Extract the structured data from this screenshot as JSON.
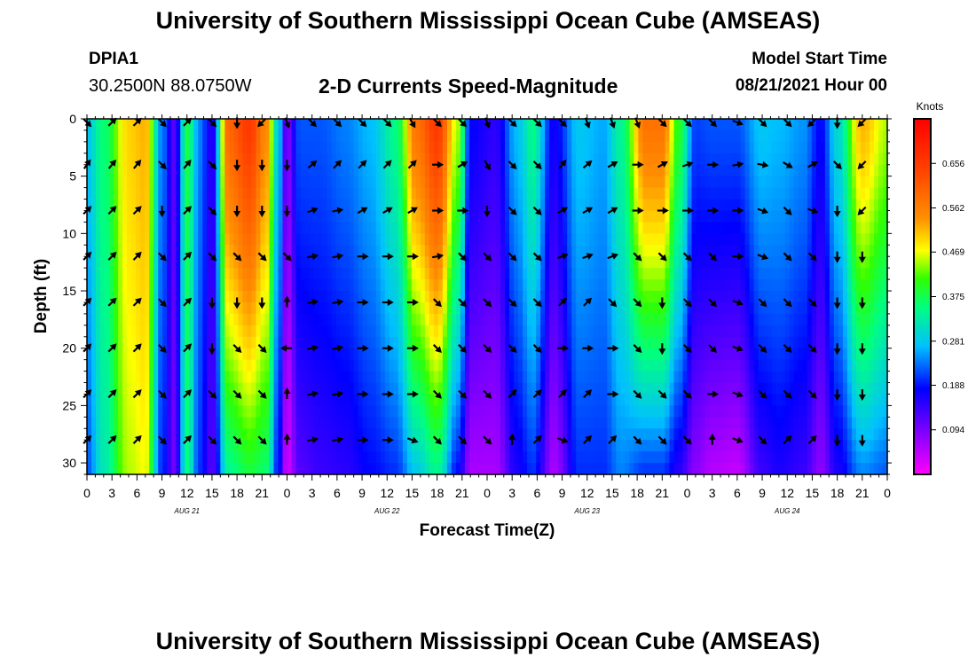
{
  "header": {
    "title": "University of Southern Mississippi Ocean Cube (AMSEAS)",
    "station_id": "DPIA1",
    "station_coords": "30.2500N  88.0750W",
    "subtitle": "2-D Currents Speed-Magnitude",
    "model_label": "Model Start Time",
    "model_date": "08/21/2021 Hour 00"
  },
  "footer": {
    "title": "University of Southern Mississippi Ocean Cube (AMSEAS)"
  },
  "colorbar": {
    "unit": "Knots",
    "ticks": [
      "0.656",
      "0.562",
      "0.469",
      "0.375",
      "0.281",
      "0.188",
      "0.094"
    ]
  },
  "chart_data": {
    "type": "heatmap",
    "title": "2-D Currents Speed-Magnitude",
    "xlabel": "Forecast Time(Z)",
    "ylabel": "Depth (ft)",
    "x_ticks": [
      "0",
      "3",
      "6",
      "9",
      "12",
      "15",
      "18",
      "21",
      "0",
      "3",
      "6",
      "9",
      "12",
      "15",
      "18",
      "21",
      "0",
      "3",
      "6",
      "9",
      "12",
      "15",
      "18",
      "21",
      "0",
      "3",
      "6",
      "9",
      "12",
      "15",
      "18",
      "21",
      "0"
    ],
    "x_range_hours": [
      0,
      96
    ],
    "day_labels": [
      {
        "hour": 12,
        "label": "AUG 21"
      },
      {
        "hour": 36,
        "label": "AUG 22"
      },
      {
        "hour": 60,
        "label": "AUG 23"
      },
      {
        "hour": 84,
        "label": "AUG 24"
      }
    ],
    "y_ticks": [
      "0",
      "5",
      "10",
      "15",
      "20",
      "25",
      "30"
    ],
    "ylim": [
      31,
      0
    ],
    "colorscale_knots": [
      0.0,
      0.75
    ],
    "speed_profile": [
      {
        "hour": 0,
        "top": 0.28,
        "bottom": 0.22
      },
      {
        "hour": 2,
        "top": 0.36,
        "bottom": 0.32
      },
      {
        "hour": 5,
        "top": 0.5,
        "bottom": 0.45
      },
      {
        "hour": 7,
        "top": 0.52,
        "bottom": 0.47
      },
      {
        "hour": 9,
        "top": 0.24,
        "bottom": 0.2
      },
      {
        "hour": 10.5,
        "top": 0.12,
        "bottom": 0.1
      },
      {
        "hour": 12,
        "top": 0.38,
        "bottom": 0.35
      },
      {
        "hour": 13.5,
        "top": 0.24,
        "bottom": 0.2
      },
      {
        "hour": 15,
        "top": 0.15,
        "bottom": 0.12
      },
      {
        "hour": 17,
        "top": 0.6,
        "bottom": 0.34
      },
      {
        "hour": 19.5,
        "top": 0.66,
        "bottom": 0.38
      },
      {
        "hour": 21.5,
        "top": 0.55,
        "bottom": 0.36
      },
      {
        "hour": 23,
        "top": 0.28,
        "bottom": 0.18
      },
      {
        "hour": 24,
        "top": 0.09,
        "bottom": 0.03
      },
      {
        "hour": 25.5,
        "top": 0.22,
        "bottom": 0.12
      },
      {
        "hour": 28,
        "top": 0.22,
        "bottom": 0.14
      },
      {
        "hour": 31,
        "top": 0.24,
        "bottom": 0.15
      },
      {
        "hour": 34,
        "top": 0.27,
        "bottom": 0.18
      },
      {
        "hour": 37,
        "top": 0.35,
        "bottom": 0.2
      },
      {
        "hour": 39.5,
        "top": 0.58,
        "bottom": 0.28
      },
      {
        "hour": 42,
        "top": 0.66,
        "bottom": 0.34
      },
      {
        "hour": 44.5,
        "top": 0.45,
        "bottom": 0.18
      },
      {
        "hour": 46,
        "top": 0.18,
        "bottom": 0.06
      },
      {
        "hour": 49,
        "top": 0.15,
        "bottom": 0.06
      },
      {
        "hour": 51.5,
        "top": 0.27,
        "bottom": 0.16
      },
      {
        "hour": 53.5,
        "top": 0.35,
        "bottom": 0.2
      },
      {
        "hour": 56,
        "top": 0.17,
        "bottom": 0.06
      },
      {
        "hour": 59,
        "top": 0.28,
        "bottom": 0.2
      },
      {
        "hour": 62,
        "top": 0.26,
        "bottom": 0.2
      },
      {
        "hour": 64,
        "top": 0.34,
        "bottom": 0.24
      },
      {
        "hour": 67,
        "top": 0.58,
        "bottom": 0.2
      },
      {
        "hour": 69,
        "top": 0.58,
        "bottom": 0.2
      },
      {
        "hour": 71,
        "top": 0.4,
        "bottom": 0.15
      },
      {
        "hour": 73,
        "top": 0.21,
        "bottom": 0.08
      },
      {
        "hour": 75,
        "top": 0.22,
        "bottom": 0.05
      },
      {
        "hour": 78,
        "top": 0.22,
        "bottom": 0.04
      },
      {
        "hour": 81,
        "top": 0.28,
        "bottom": 0.14
      },
      {
        "hour": 83,
        "top": 0.27,
        "bottom": 0.16
      },
      {
        "hour": 86,
        "top": 0.25,
        "bottom": 0.14
      },
      {
        "hour": 88,
        "top": 0.18,
        "bottom": 0.08
      },
      {
        "hour": 90,
        "top": 0.3,
        "bottom": 0.16
      },
      {
        "hour": 93,
        "top": 0.52,
        "bottom": 0.24
      },
      {
        "hour": 96,
        "top": 0.45,
        "bottom": 0.22
      }
    ],
    "vector_rows_ft": [
      0,
      4,
      8,
      12,
      16,
      20,
      24,
      28
    ],
    "vector_directions_deg": [
      [
        135,
        45,
        45,
        135,
        45,
        135,
        180,
        225,
        160,
        135,
        135,
        135,
        135,
        150,
        135,
        135,
        160,
        135,
        135,
        135,
        160,
        160,
        160,
        135,
        135,
        135,
        110,
        135,
        135,
        225,
        180,
        225
      ],
      [
        35,
        40,
        40,
        135,
        40,
        135,
        180,
        180,
        180,
        50,
        45,
        45,
        45,
        45,
        90,
        60,
        150,
        135,
        135,
        40,
        50,
        60,
        90,
        60,
        70,
        90,
        80,
        100,
        120,
        60,
        135,
        225
      ],
      [
        45,
        45,
        45,
        180,
        45,
        135,
        180,
        180,
        180,
        70,
        80,
        60,
        60,
        60,
        90,
        90,
        180,
        135,
        135,
        60,
        60,
        60,
        90,
        90,
        90,
        90,
        90,
        110,
        135,
        110,
        180,
        225
      ],
      [
        45,
        45,
        45,
        135,
        45,
        135,
        135,
        135,
        135,
        80,
        80,
        90,
        90,
        90,
        80,
        135,
        135,
        135,
        135,
        70,
        70,
        70,
        135,
        135,
        135,
        135,
        90,
        110,
        135,
        135,
        180,
        180
      ],
      [
        45,
        45,
        45,
        135,
        45,
        180,
        180,
        180,
        0,
        80,
        80,
        90,
        90,
        90,
        135,
        135,
        135,
        135,
        135,
        45,
        45,
        135,
        135,
        180,
        135,
        135,
        110,
        135,
        135,
        135,
        180,
        180
      ],
      [
        45,
        45,
        45,
        135,
        45,
        180,
        135,
        135,
        270,
        80,
        80,
        90,
        90,
        90,
        135,
        135,
        135,
        135,
        135,
        90,
        90,
        90,
        135,
        180,
        135,
        135,
        110,
        135,
        135,
        135,
        180,
        180
      ],
      [
        45,
        45,
        45,
        135,
        45,
        135,
        135,
        135,
        0,
        80,
        80,
        90,
        90,
        90,
        135,
        135,
        135,
        45,
        45,
        45,
        45,
        90,
        135,
        135,
        135,
        90,
        110,
        135,
        135,
        135,
        180,
        180
      ],
      [
        45,
        45,
        45,
        135,
        45,
        135,
        135,
        135,
        0,
        80,
        80,
        90,
        90,
        110,
        135,
        135,
        135,
        0,
        45,
        110,
        45,
        45,
        135,
        135,
        135,
        0,
        110,
        135,
        45,
        45,
        180,
        180
      ]
    ]
  }
}
